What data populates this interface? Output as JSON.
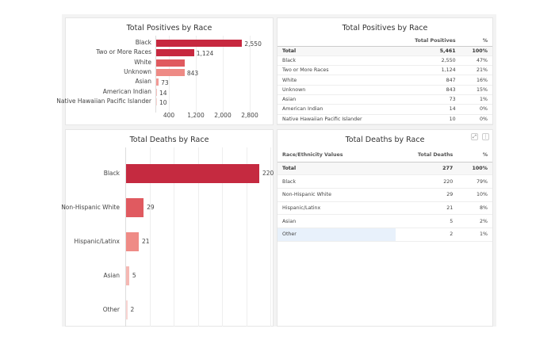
{
  "positives_chart": {
    "chart_data": {
      "type": "bar",
      "orientation": "horizontal",
      "title": "Total Positives by Race",
      "categories": [
        "Black",
        "Two or More Races",
        "White",
        "Unknown",
        "Asian",
        "American Indian",
        "Native Hawaiian Pacific Islander"
      ],
      "values": [
        2550,
        1124,
        847,
        843,
        73,
        14,
        10
      ],
      "data_labels": [
        "2,550",
        "1,124",
        "",
        "843",
        "73",
        "14",
        "10"
      ],
      "x_ticks": [
        "400",
        "1,200",
        "2,000",
        "2,800"
      ],
      "tick_values": [
        400,
        1200,
        2000,
        2800
      ],
      "xlim": [
        0,
        3600
      ],
      "grid": true,
      "colors": [
        "#c7283f",
        "#c7283f",
        "#e05a5f",
        "#ee8a85",
        "#f29a95",
        "#f7c4c0",
        "#f9d6d3"
      ]
    }
  },
  "positives_table": {
    "title": "Total Positives by Race",
    "columns": [
      "",
      "Total Positives",
      "%"
    ],
    "rows": [
      [
        "Total",
        "5,461",
        "100%"
      ],
      [
        "Black",
        "2,550",
        "47%"
      ],
      [
        "Two or More Races",
        "1,124",
        "21%"
      ],
      [
        "White",
        "847",
        "16%"
      ],
      [
        "Unknown",
        "843",
        "15%"
      ],
      [
        "Asian",
        "73",
        "1%"
      ],
      [
        "American Indian",
        "14",
        "0%"
      ],
      [
        "Native Hawaiian Pacific Islander",
        "10",
        "0%"
      ]
    ]
  },
  "deaths_chart": {
    "chart_data": {
      "type": "bar",
      "orientation": "horizontal",
      "title": "Total Deaths by Race",
      "categories": [
        "Black",
        "Non-Hispanic White",
        "Hispanic/Latinx",
        "Asian",
        "Other"
      ],
      "values": [
        220,
        29,
        21,
        5,
        2
      ],
      "data_labels": [
        "220",
        "29",
        "21",
        "5",
        "2"
      ],
      "xlim": [
        0,
        240
      ],
      "grid": true,
      "colors": [
        "#c52a40",
        "#e05a60",
        "#ef8b86",
        "#f5b8b3",
        "#f9d5d2"
      ]
    }
  },
  "deaths_table": {
    "title": "Total Deaths by Race",
    "columns": [
      "Race/Ethnicity Values",
      "Total Deaths",
      "%"
    ],
    "rows": [
      [
        "Total",
        "277",
        "100%"
      ],
      [
        "Black",
        "220",
        "79%"
      ],
      [
        "Non-Hispanic White",
        "29",
        "10%"
      ],
      [
        "Hispanic/Latinx",
        "21",
        "8%"
      ],
      [
        "Asian",
        "5",
        "2%"
      ],
      [
        "Other",
        "2",
        "1%"
      ]
    ],
    "expand_icon": "expand-icon",
    "menu_icon": "kebab-menu-icon",
    "highlight_color": "#e8f1fb"
  }
}
